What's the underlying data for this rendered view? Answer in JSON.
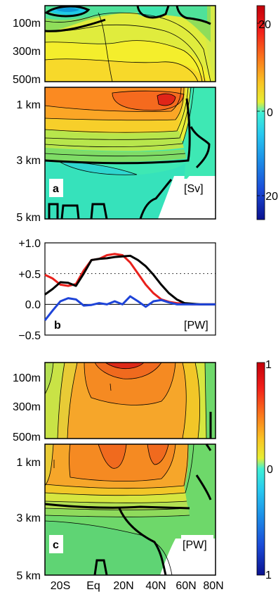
{
  "figure": {
    "panel_a": {
      "label": "a",
      "unit": "[Sv]",
      "y_ticks_upper": [
        "100m",
        "300m",
        "500m"
      ],
      "y_ticks_lower": [
        "1 km",
        "3 km",
        "5 km"
      ],
      "colorbar_ticks": [
        "20",
        "0",
        "20"
      ],
      "colorbar_range": [
        -25,
        25
      ]
    },
    "panel_b": {
      "label": "b",
      "unit": "[PW]",
      "y_ticks": [
        "+1.0",
        "+0.5",
        "0.0",
        "−0.5"
      ]
    },
    "panel_c": {
      "label": "c",
      "unit": "[PW]",
      "y_ticks_upper": [
        "100m",
        "300m",
        "500m"
      ],
      "y_ticks_lower": [
        "1 km",
        "3 km",
        "5 km"
      ],
      "colorbar_ticks": [
        "1",
        "0",
        "1"
      ],
      "colorbar_range": [
        -1,
        1
      ]
    },
    "x_ticks": [
      "20S",
      "Eq",
      "20N",
      "40N",
      "60N",
      "80N"
    ]
  },
  "chart_data": [
    {
      "type": "heatmap",
      "panel": "a",
      "description_of_values": "meridional overturning streamfunction",
      "x": [
        "30S",
        "20S",
        "10S",
        "Eq",
        "10N",
        "20N",
        "30N",
        "40N",
        "50N",
        "60N",
        "70N",
        "80N"
      ],
      "unit": "Sv",
      "colorbar_ticks": [
        "20",
        "0",
        "20"
      ],
      "vrange": [
        -25,
        25
      ]
    },
    {
      "type": "line",
      "panel": "b",
      "x": [
        "30S",
        "25S",
        "20S",
        "15S",
        "10S",
        "5S",
        "Eq",
        "5N",
        "10N",
        "15N",
        "20N",
        "25N",
        "30N",
        "35N",
        "40N",
        "45N",
        "50N",
        "55N",
        "60N",
        "65N",
        "70N",
        "75N",
        "80N"
      ],
      "ylim": [
        -0.5,
        1.0
      ],
      "unit": "PW",
      "series": [
        {
          "color": "#e8201b",
          "values": [
            0.48,
            0.42,
            0.32,
            0.3,
            0.33,
            0.55,
            0.72,
            0.74,
            0.8,
            0.82,
            0.8,
            0.68,
            0.5,
            0.32,
            0.18,
            0.08,
            0.04,
            0.02,
            0.01,
            0.0,
            0.0,
            0.0,
            0.0
          ]
        },
        {
          "color": "#000000",
          "values": [
            0.16,
            0.25,
            0.36,
            0.35,
            0.3,
            0.5,
            0.72,
            0.74,
            0.75,
            0.77,
            0.78,
            0.79,
            0.72,
            0.62,
            0.48,
            0.32,
            0.18,
            0.08,
            0.02,
            0.01,
            0.0,
            0.0,
            0.0
          ]
        },
        {
          "color": "#1e44d8",
          "values": [
            -0.26,
            -0.1,
            0.05,
            0.1,
            0.08,
            -0.02,
            -0.01,
            0.02,
            0.0,
            0.05,
            0.0,
            0.13,
            0.05,
            -0.04,
            0.05,
            0.07,
            0.03,
            0.0,
            0.0,
            0.0,
            0.0,
            0.0,
            0.0
          ]
        }
      ]
    },
    {
      "type": "heatmap",
      "panel": "c",
      "description_of_values": "meridional heat transport streamfunction",
      "x": [
        "30S",
        "20S",
        "10S",
        "Eq",
        "10N",
        "20N",
        "30N",
        "40N",
        "50N",
        "60N",
        "70N",
        "80N"
      ],
      "unit": "PW",
      "colorbar_ticks": [
        "1",
        "0",
        "1"
      ],
      "vrange": [
        -1,
        1
      ]
    }
  ]
}
